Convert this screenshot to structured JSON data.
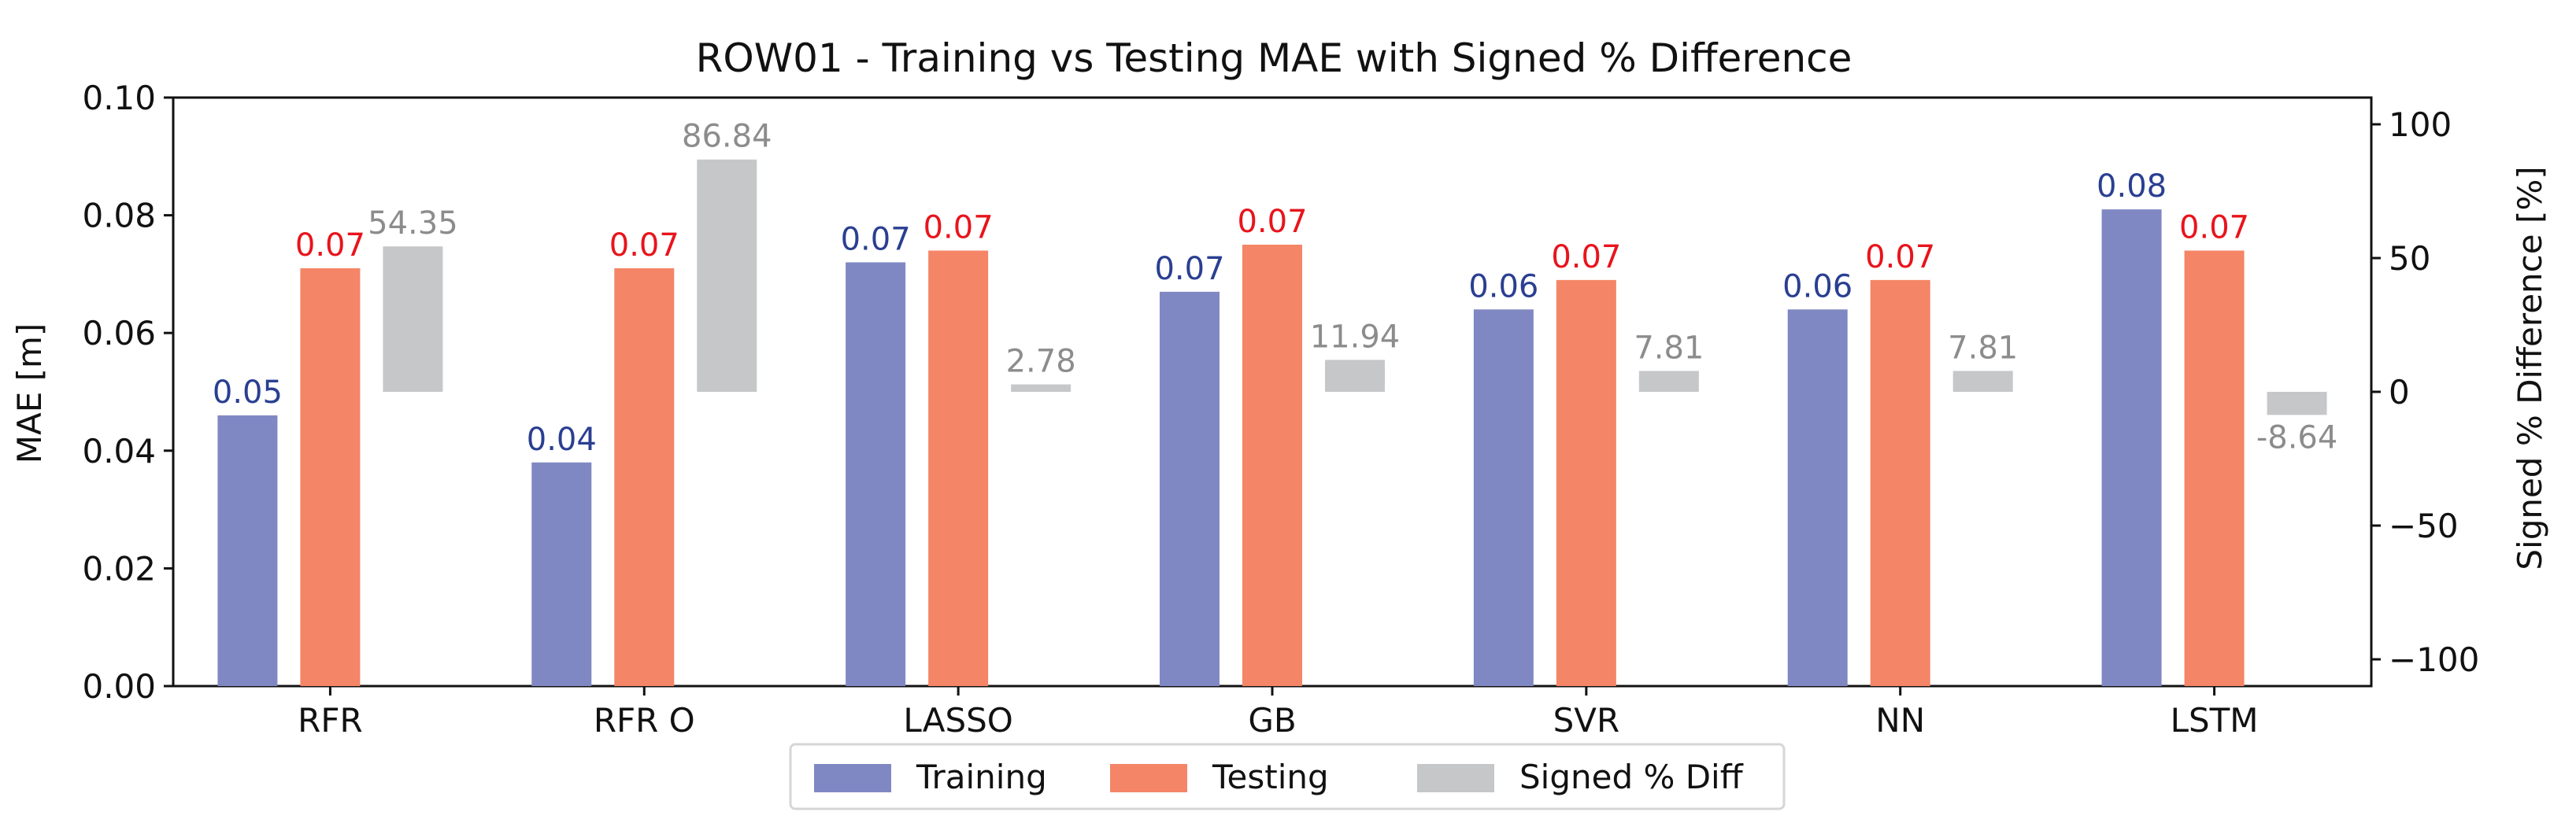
{
  "chart_data": {
    "type": "bar",
    "title": "ROW01 - Training vs Testing MAE with Signed % Difference",
    "xlabel": "",
    "ylabel": "MAE [m]",
    "y2label": "Signed % Difference [%]",
    "ylim": [
      0,
      0.1
    ],
    "y2lim": [
      -110,
      110
    ],
    "yticks": [
      "0.00",
      "0.02",
      "0.04",
      "0.06",
      "0.08",
      "0.10"
    ],
    "y2ticks": [
      "−100",
      "−50",
      "0",
      "50",
      "100"
    ],
    "y2tick_values": [
      -100,
      -50,
      0,
      50,
      100
    ],
    "categories": [
      "RFR",
      "RFR O",
      "LASSO",
      "GB",
      "SVR",
      "NN",
      "LSTM"
    ],
    "series": [
      {
        "name": "Training",
        "axis": "left",
        "color": "#8088c3",
        "label_color": "#2a3f91",
        "values": [
          0.046,
          0.038,
          0.072,
          0.067,
          0.064,
          0.064,
          0.081
        ],
        "labels": [
          "0.05",
          "0.04",
          "0.07",
          "0.07",
          "0.06",
          "0.06",
          "0.08"
        ]
      },
      {
        "name": "Testing",
        "axis": "left",
        "color": "#f48566",
        "label_color": "#e8141c",
        "values": [
          0.071,
          0.071,
          0.074,
          0.075,
          0.069,
          0.069,
          0.074
        ],
        "labels": [
          "0.07",
          "0.07",
          "0.07",
          "0.07",
          "0.07",
          "0.07",
          "0.07"
        ]
      },
      {
        "name": "Signed % Diff",
        "axis": "right",
        "color": "#c6c7c9",
        "label_color": "#8c8c8c",
        "values": [
          54.35,
          86.84,
          2.78,
          11.94,
          7.81,
          7.81,
          -8.64
        ],
        "labels": [
          "54.35",
          "86.84",
          "2.78",
          "11.94",
          "7.81",
          "7.81",
          "-8.64"
        ]
      }
    ],
    "legend": {
      "position": "bottom-center",
      "entries": [
        "Training",
        "Testing",
        "Signed % Diff"
      ]
    },
    "grid": false
  }
}
